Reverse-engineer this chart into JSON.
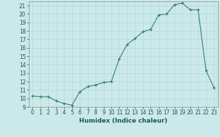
{
  "x": [
    0,
    1,
    2,
    3,
    4,
    5,
    6,
    7,
    8,
    9,
    10,
    11,
    12,
    13,
    14,
    15,
    16,
    17,
    18,
    19,
    20,
    21,
    22,
    23
  ],
  "y": [
    10.3,
    10.2,
    10.2,
    9.7,
    9.4,
    9.2,
    10.8,
    11.4,
    11.6,
    11.9,
    12.0,
    14.7,
    16.4,
    17.1,
    17.9,
    18.2,
    19.9,
    20.0,
    21.1,
    21.3,
    20.5,
    20.5,
    13.3,
    11.3
  ],
  "xlabel": "Humidex (Indice chaleur)",
  "xlim": [
    -0.5,
    23.5
  ],
  "ylim": [
    9,
    21.5
  ],
  "yticks": [
    9,
    10,
    11,
    12,
    13,
    14,
    15,
    16,
    17,
    18,
    19,
    20,
    21
  ],
  "xticks": [
    0,
    1,
    2,
    3,
    4,
    5,
    6,
    7,
    8,
    9,
    10,
    11,
    12,
    13,
    14,
    15,
    16,
    17,
    18,
    19,
    20,
    21,
    22,
    23
  ],
  "line_color": "#2d7d6e",
  "marker": "+",
  "bg_color": "#cce9e9",
  "grid_color": "#b0d8d8",
  "label_fontsize": 6.5,
  "tick_fontsize": 5.5
}
